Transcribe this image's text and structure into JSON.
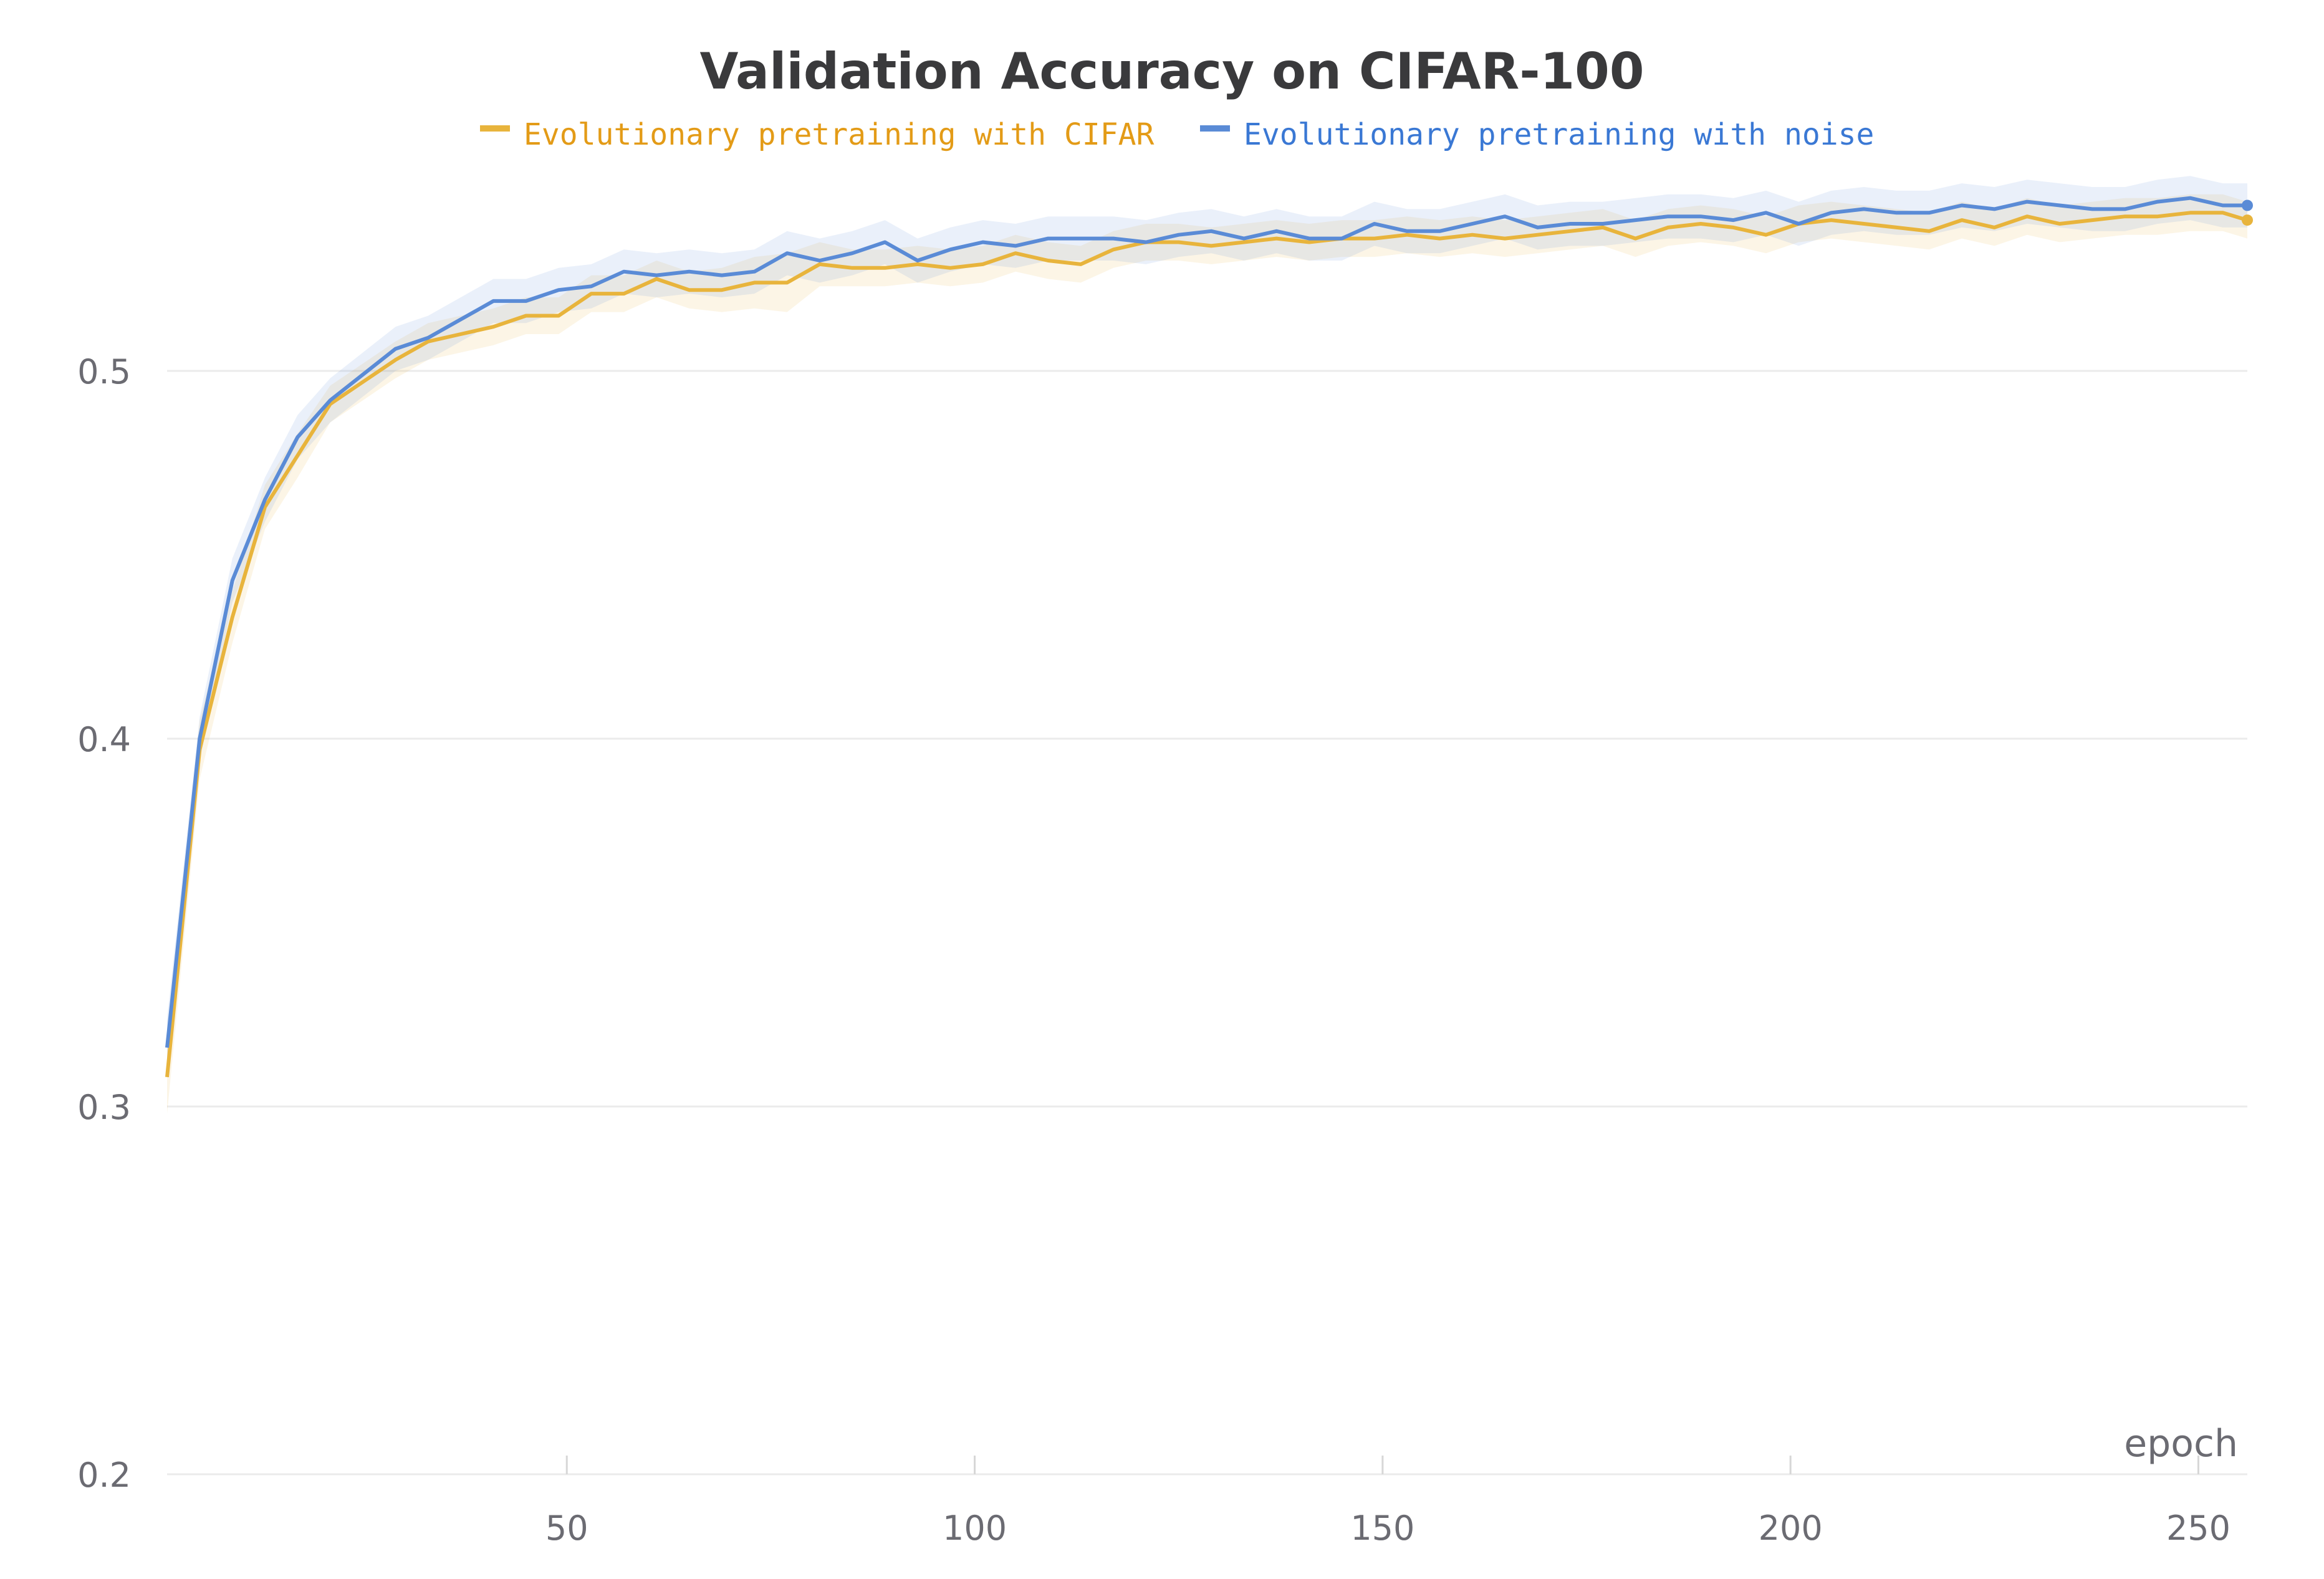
{
  "chart_data": {
    "type": "line",
    "title": "Validation Accuracy on CIFAR-100",
    "xlabel": "epoch",
    "ylabel": "",
    "xlim": [
      1,
      256
    ],
    "ylim": [
      0.2,
      0.56
    ],
    "yticks": [
      0.2,
      0.3,
      0.4,
      0.5
    ],
    "ytick_labels": [
      "0.2",
      "0.3",
      "0.4",
      "0.5"
    ],
    "xticks": [
      50,
      100,
      150,
      200,
      250
    ],
    "xtick_labels": [
      "50",
      "100",
      "150",
      "200",
      "250"
    ],
    "grid": true,
    "legend": "top-center",
    "x": [
      1,
      5,
      9,
      13,
      17,
      21,
      25,
      29,
      33,
      37,
      41,
      45,
      49,
      53,
      57,
      61,
      65,
      69,
      73,
      77,
      81,
      85,
      89,
      93,
      97,
      101,
      105,
      109,
      113,
      117,
      121,
      125,
      129,
      133,
      137,
      141,
      145,
      149,
      153,
      157,
      161,
      165,
      169,
      173,
      177,
      181,
      185,
      189,
      193,
      197,
      201,
      205,
      209,
      213,
      217,
      221,
      225,
      229,
      233,
      237,
      241,
      245,
      249,
      253,
      256
    ],
    "series": [
      {
        "name": "Evolutionary pretraining with CIFAR",
        "color": "#e8b43c",
        "text_color": "#e39b17",
        "values": [
          0.308,
          0.397,
          0.433,
          0.463,
          0.477,
          0.491,
          0.497,
          0.503,
          0.508,
          0.51,
          0.512,
          0.515,
          0.515,
          0.521,
          0.521,
          0.525,
          0.522,
          0.522,
          0.524,
          0.524,
          0.529,
          0.528,
          0.528,
          0.529,
          0.528,
          0.529,
          0.532,
          0.53,
          0.529,
          0.533,
          0.535,
          0.535,
          0.534,
          0.535,
          0.536,
          0.535,
          0.536,
          0.536,
          0.537,
          0.536,
          0.537,
          0.536,
          0.537,
          0.538,
          0.539,
          0.536,
          0.539,
          0.54,
          0.539,
          0.537,
          0.54,
          0.541,
          0.54,
          0.539,
          0.538,
          0.541,
          0.539,
          0.542,
          0.54,
          0.541,
          0.542,
          0.542,
          0.543,
          0.543,
          0.541
        ],
        "band": [
          0.01,
          0.008,
          0.007,
          0.006,
          0.006,
          0.005,
          0.005,
          0.005,
          0.005,
          0.005,
          0.005,
          0.005,
          0.005,
          0.005,
          0.005,
          0.005,
          0.005,
          0.006,
          0.007,
          0.008,
          0.006,
          0.005,
          0.005,
          0.005,
          0.005,
          0.005,
          0.005,
          0.005,
          0.005,
          0.005,
          0.005,
          0.005,
          0.005,
          0.005,
          0.005,
          0.005,
          0.005,
          0.005,
          0.005,
          0.005,
          0.005,
          0.005,
          0.005,
          0.005,
          0.005,
          0.005,
          0.005,
          0.005,
          0.005,
          0.005,
          0.005,
          0.005,
          0.005,
          0.005,
          0.005,
          0.005,
          0.005,
          0.005,
          0.005,
          0.005,
          0.005,
          0.005,
          0.005,
          0.005,
          0.005
        ]
      },
      {
        "name": "Evolutionary pretraining with noise",
        "color": "#5a8bd6",
        "text_color": "#3a78d4",
        "values": [
          0.316,
          0.4,
          0.443,
          0.465,
          0.482,
          0.492,
          0.499,
          0.506,
          0.509,
          0.514,
          0.519,
          0.519,
          0.522,
          0.523,
          0.527,
          0.526,
          0.527,
          0.526,
          0.527,
          0.532,
          0.53,
          0.532,
          0.535,
          0.53,
          0.533,
          0.535,
          0.534,
          0.536,
          0.536,
          0.536,
          0.535,
          0.537,
          0.538,
          0.536,
          0.538,
          0.536,
          0.536,
          0.54,
          0.538,
          0.538,
          0.54,
          0.542,
          0.539,
          0.54,
          0.54,
          0.541,
          0.542,
          0.542,
          0.541,
          0.543,
          0.54,
          0.543,
          0.544,
          0.543,
          0.543,
          0.545,
          0.544,
          0.546,
          0.545,
          0.544,
          0.544,
          0.546,
          0.547,
          0.545,
          0.545
        ],
        "band": [
          0.008,
          0.006,
          0.006,
          0.006,
          0.006,
          0.006,
          0.006,
          0.006,
          0.006,
          0.006,
          0.006,
          0.006,
          0.006,
          0.006,
          0.006,
          0.006,
          0.006,
          0.006,
          0.006,
          0.006,
          0.006,
          0.006,
          0.006,
          0.006,
          0.006,
          0.006,
          0.006,
          0.006,
          0.006,
          0.006,
          0.006,
          0.006,
          0.006,
          0.006,
          0.006,
          0.006,
          0.006,
          0.006,
          0.006,
          0.006,
          0.006,
          0.006,
          0.006,
          0.006,
          0.006,
          0.006,
          0.006,
          0.006,
          0.006,
          0.006,
          0.006,
          0.006,
          0.006,
          0.006,
          0.006,
          0.006,
          0.006,
          0.006,
          0.006,
          0.006,
          0.006,
          0.006,
          0.006,
          0.006,
          0.006
        ]
      }
    ]
  }
}
